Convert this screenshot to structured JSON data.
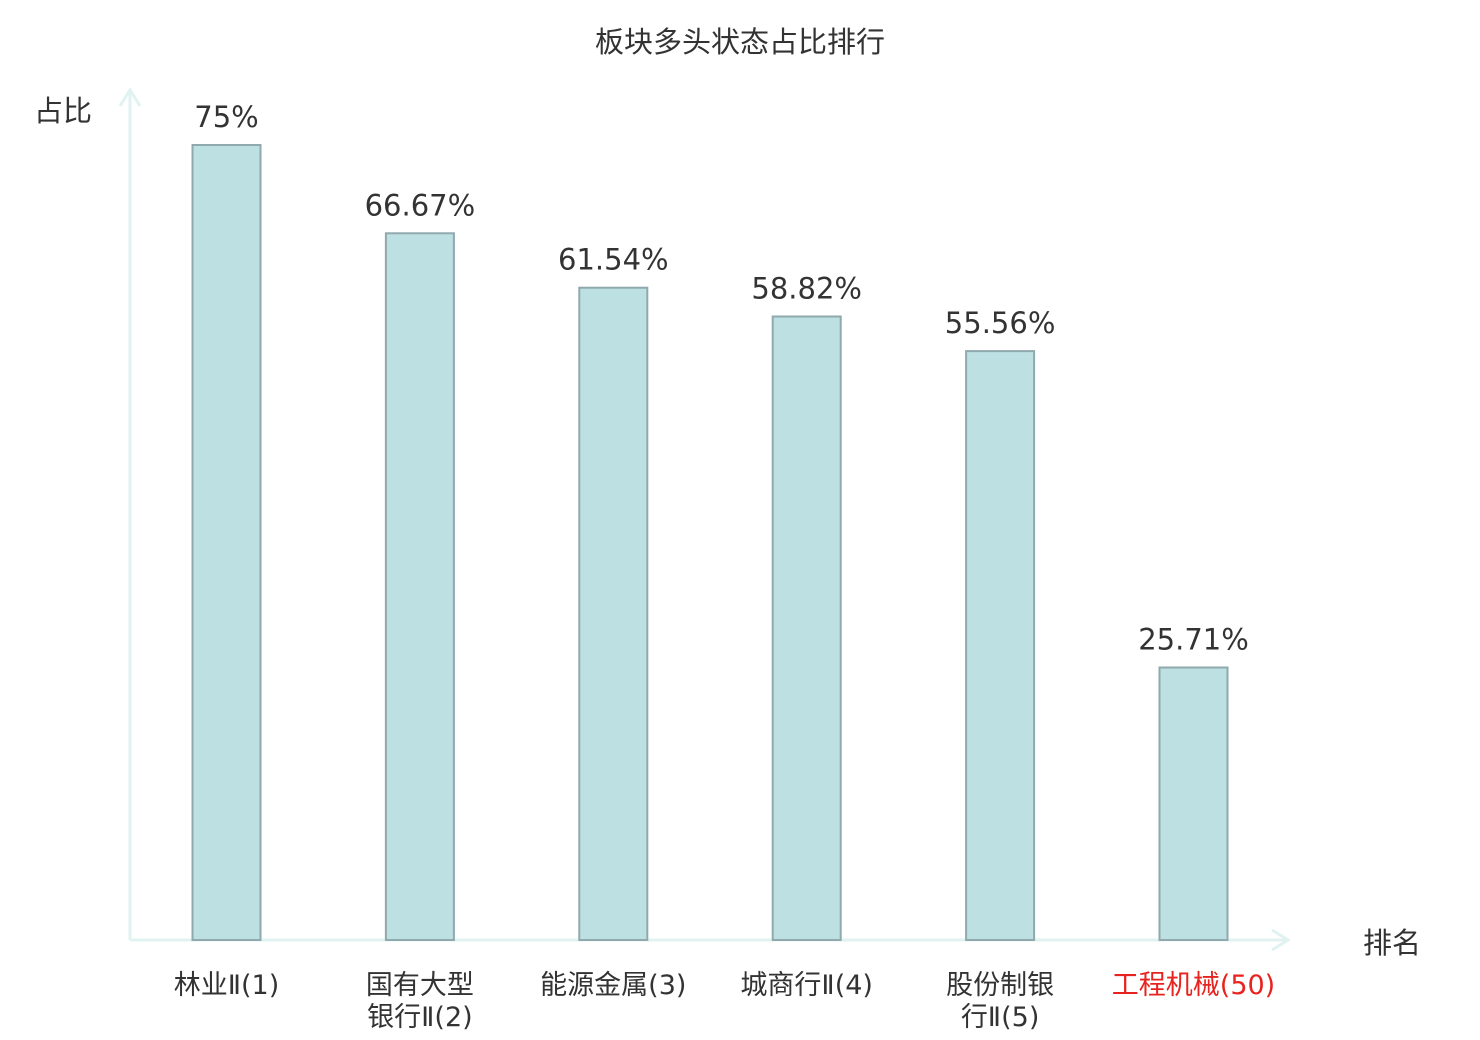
{
  "chart_data": {
    "type": "bar",
    "title": "板块多头状态占比排行",
    "ylabel": "占比",
    "xlabel": "排名",
    "ylim": [
      0,
      80
    ],
    "categories": [
      "林业Ⅱ(1)",
      "国有大型银行Ⅱ(2)",
      "能源金属(3)",
      "城商行Ⅱ(4)",
      "股份制银行Ⅱ(5)",
      "工程机械(50)"
    ],
    "category_lines": [
      [
        "林业Ⅱ(1)"
      ],
      [
        "国有大型",
        "银行Ⅱ(2)"
      ],
      [
        "能源金属(3)"
      ],
      [
        "城商行Ⅱ(4)"
      ],
      [
        "股份制银",
        "行Ⅱ(5)"
      ],
      [
        "工程机械(50)"
      ]
    ],
    "values": [
      75,
      66.67,
      61.54,
      58.82,
      55.56,
      25.71
    ],
    "value_labels": [
      "75%",
      "66.67%",
      "61.54%",
      "58.82%",
      "55.56%",
      "25.71%"
    ],
    "highlight_index": 5,
    "grid": false,
    "colors": {
      "bar_fill": "#bde0e3",
      "bar_stroke": "#8fa9ad",
      "axis": "#e0f3f0",
      "text": "#333333",
      "highlight_text": "#e8231f"
    }
  }
}
